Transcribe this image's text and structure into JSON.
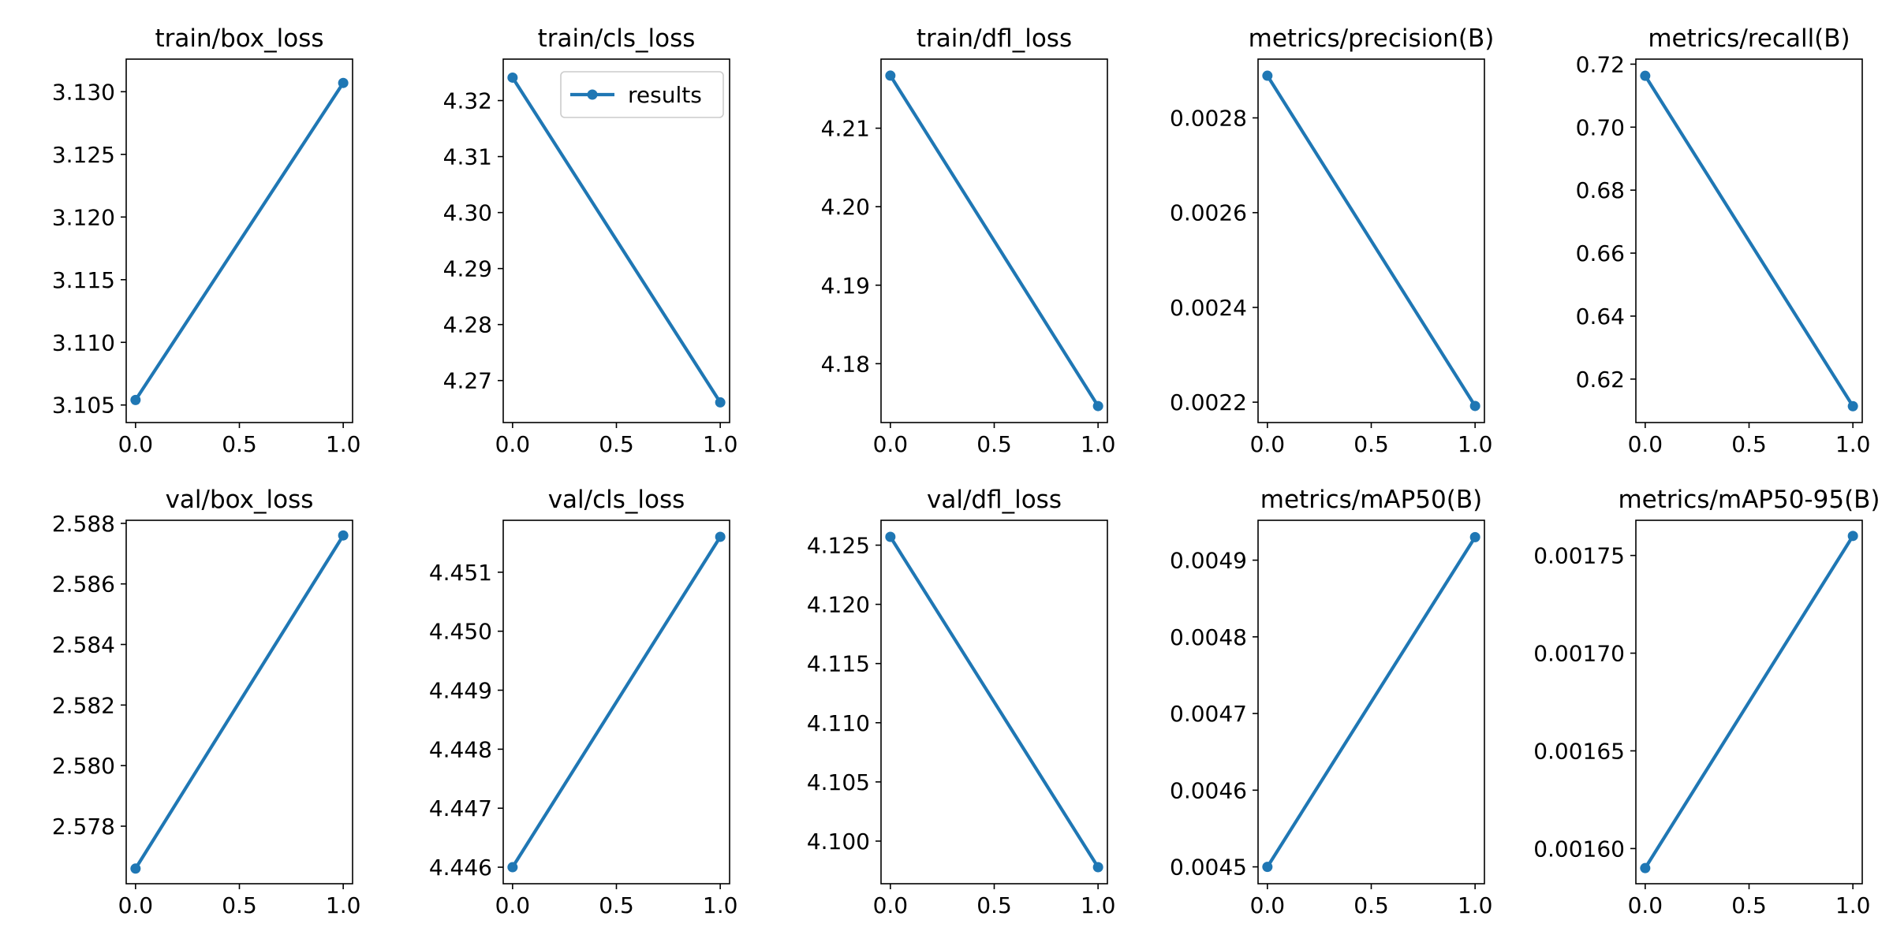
{
  "figure": {
    "series_color": "#1f77b4",
    "legend": {
      "entry": "results",
      "placement": "upper right",
      "in_panel": "train/cls_loss"
    }
  },
  "chart_data": [
    {
      "type": "line",
      "title": "train/box_loss",
      "xlabel": "",
      "ylabel": "",
      "grid": false,
      "x": [
        0,
        1
      ],
      "y": [
        3.1054,
        3.1307
      ],
      "ylim": [
        3.1036,
        3.1326
      ],
      "xticks": [
        0,
        0.5,
        1
      ],
      "xtick_labels": [
        "0.0",
        "0.5",
        "1.0"
      ],
      "yticks": [
        3.105,
        3.11,
        3.115,
        3.12,
        3.125,
        3.13
      ],
      "ytick_labels": [
        "3.105",
        "3.110",
        "3.115",
        "3.120",
        "3.125",
        "3.130"
      ]
    },
    {
      "type": "line",
      "title": "train/cls_loss",
      "xlabel": "",
      "ylabel": "",
      "grid": false,
      "x": [
        0,
        1
      ],
      "y": [
        4.3241,
        4.2661
      ],
      "ylim": [
        4.2625,
        4.3274
      ],
      "xticks": [
        0,
        0.5,
        1
      ],
      "xtick_labels": [
        "0.0",
        "0.5",
        "1.0"
      ],
      "yticks": [
        4.27,
        4.28,
        4.29,
        4.3,
        4.31,
        4.32
      ],
      "ytick_labels": [
        "4.27",
        "4.28",
        "4.29",
        "4.30",
        "4.31",
        "4.32"
      ]
    },
    {
      "type": "line",
      "title": "train/dfl_loss",
      "xlabel": "",
      "ylabel": "",
      "grid": false,
      "x": [
        0,
        1
      ],
      "y": [
        4.2167,
        4.1746
      ],
      "ylim": [
        4.1725,
        4.2188
      ],
      "xticks": [
        0,
        0.5,
        1
      ],
      "xtick_labels": [
        "0.0",
        "0.5",
        "1.0"
      ],
      "yticks": [
        4.18,
        4.19,
        4.2,
        4.21
      ],
      "ytick_labels": [
        "4.18",
        "4.19",
        "4.20",
        "4.21"
      ]
    },
    {
      "type": "line",
      "title": "metrics/precision(B)",
      "xlabel": "",
      "ylabel": "",
      "grid": false,
      "x": [
        0,
        1
      ],
      "y": [
        0.002889,
        0.002192
      ],
      "ylim": [
        0.002157,
        0.002924
      ],
      "xticks": [
        0,
        0.5,
        1
      ],
      "xtick_labels": [
        "0.0",
        "0.5",
        "1.0"
      ],
      "yticks": [
        0.0022,
        0.0024,
        0.0026,
        0.0028
      ],
      "ytick_labels": [
        "0.0022",
        "0.0024",
        "0.0026",
        "0.0028"
      ]
    },
    {
      "type": "line",
      "title": "metrics/recall(B)",
      "xlabel": "",
      "ylabel": "",
      "grid": false,
      "x": [
        0,
        1
      ],
      "y": [
        0.7163,
        0.6114
      ],
      "ylim": [
        0.6062,
        0.7216
      ],
      "xticks": [
        0,
        0.5,
        1
      ],
      "xtick_labels": [
        "0.0",
        "0.5",
        "1.0"
      ],
      "yticks": [
        0.62,
        0.64,
        0.66,
        0.68,
        0.7,
        0.72
      ],
      "ytick_labels": [
        "0.62",
        "0.64",
        "0.66",
        "0.68",
        "0.70",
        "0.72"
      ]
    },
    {
      "type": "line",
      "title": "val/box_loss",
      "xlabel": "",
      "ylabel": "",
      "grid": false,
      "x": [
        0,
        1
      ],
      "y": [
        2.5766,
        2.5876
      ],
      "ylim": [
        2.5761,
        2.5881
      ],
      "xticks": [
        0,
        0.5,
        1
      ],
      "xtick_labels": [
        "0.0",
        "0.5",
        "1.0"
      ],
      "yticks": [
        2.578,
        2.58,
        2.582,
        2.584,
        2.586,
        2.588
      ],
      "ytick_labels": [
        "2.578",
        "2.580",
        "2.582",
        "2.584",
        "2.586",
        "2.588"
      ]
    },
    {
      "type": "line",
      "title": "val/cls_loss",
      "xlabel": "",
      "ylabel": "",
      "grid": false,
      "x": [
        0,
        1
      ],
      "y": [
        4.446,
        4.4516
      ],
      "ylim": [
        4.44572,
        4.45188
      ],
      "xticks": [
        0,
        0.5,
        1
      ],
      "xtick_labels": [
        "0.0",
        "0.5",
        "1.0"
      ],
      "yticks": [
        4.446,
        4.447,
        4.448,
        4.449,
        4.45,
        4.451
      ],
      "ytick_labels": [
        "4.446",
        "4.447",
        "4.448",
        "4.449",
        "4.450",
        "4.451"
      ]
    },
    {
      "type": "line",
      "title": "val/dfl_loss",
      "xlabel": "",
      "ylabel": "",
      "grid": false,
      "x": [
        0,
        1
      ],
      "y": [
        4.1257,
        4.0978
      ],
      "ylim": [
        4.0964,
        4.1271
      ],
      "xticks": [
        0,
        0.5,
        1
      ],
      "xtick_labels": [
        "0.0",
        "0.5",
        "1.0"
      ],
      "yticks": [
        4.1,
        4.105,
        4.11,
        4.115,
        4.12,
        4.125
      ],
      "ytick_labels": [
        "4.100",
        "4.105",
        "4.110",
        "4.115",
        "4.120",
        "4.125"
      ]
    },
    {
      "type": "line",
      "title": "metrics/mAP50(B)",
      "xlabel": "",
      "ylabel": "",
      "grid": false,
      "x": [
        0,
        1
      ],
      "y": [
        0.0045,
        0.00493
      ],
      "ylim": [
        0.004478,
        0.004952
      ],
      "xticks": [
        0,
        0.5,
        1
      ],
      "xtick_labels": [
        "0.0",
        "0.5",
        "1.0"
      ],
      "yticks": [
        0.0045,
        0.0046,
        0.0047,
        0.0048,
        0.0049
      ],
      "ytick_labels": [
        "0.0045",
        "0.0046",
        "0.0047",
        "0.0048",
        "0.0049"
      ]
    },
    {
      "type": "line",
      "title": "metrics/mAP50-95(B)",
      "xlabel": "",
      "ylabel": "",
      "grid": false,
      "x": [
        0,
        1
      ],
      "y": [
        0.00159,
        0.00176
      ],
      "ylim": [
        0.001582,
        0.001768
      ],
      "xticks": [
        0,
        0.5,
        1
      ],
      "xtick_labels": [
        "0.0",
        "0.5",
        "1.0"
      ],
      "yticks": [
        0.0016,
        0.00165,
        0.0017,
        0.00175
      ],
      "ytick_labels": [
        "0.00160",
        "0.00165",
        "0.00170",
        "0.00175"
      ]
    }
  ]
}
